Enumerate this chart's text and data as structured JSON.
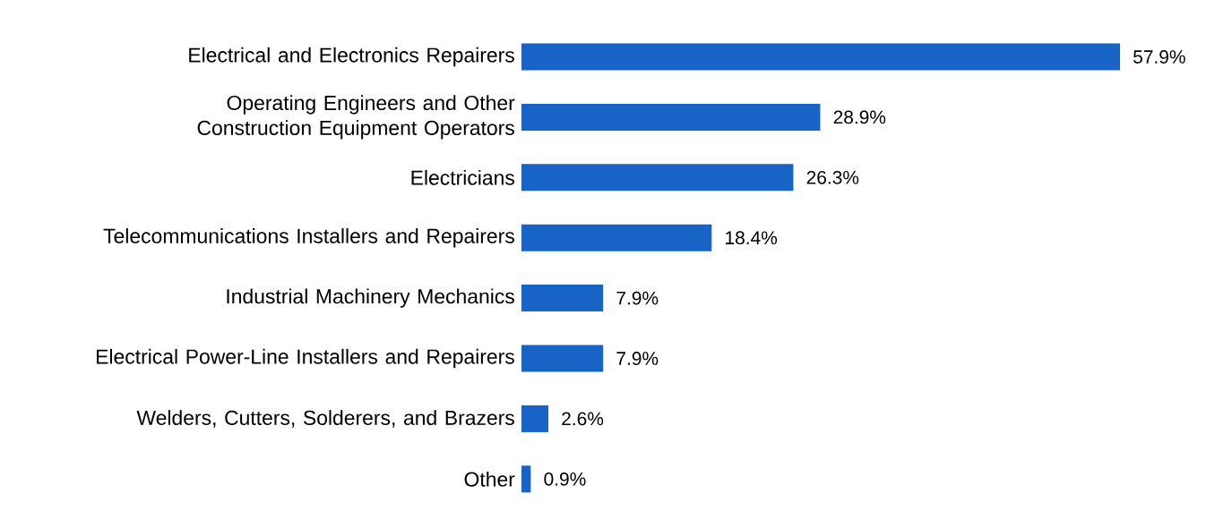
{
  "chart_data": {
    "type": "bar",
    "orientation": "horizontal",
    "categories": [
      "Electrical and Electronics Repairers",
      "Operating Engineers and Other Construction Equipment Operators",
      "Electricians",
      "Telecommunications Installers and Repairers",
      "Industrial Machinery Mechanics",
      "Electrical Power-Line Installers and Repairers",
      "Welders, Cutters, Solderers, and Brazers",
      "Other"
    ],
    "values": [
      57.9,
      28.9,
      26.3,
      18.4,
      7.9,
      7.9,
      2.6,
      0.9
    ],
    "value_labels": [
      "57.9%",
      "28.9%",
      "26.3%",
      "18.4%",
      "7.9%",
      "7.9%",
      "2.6%",
      "0.9%"
    ],
    "color": "#1763c6"
  }
}
